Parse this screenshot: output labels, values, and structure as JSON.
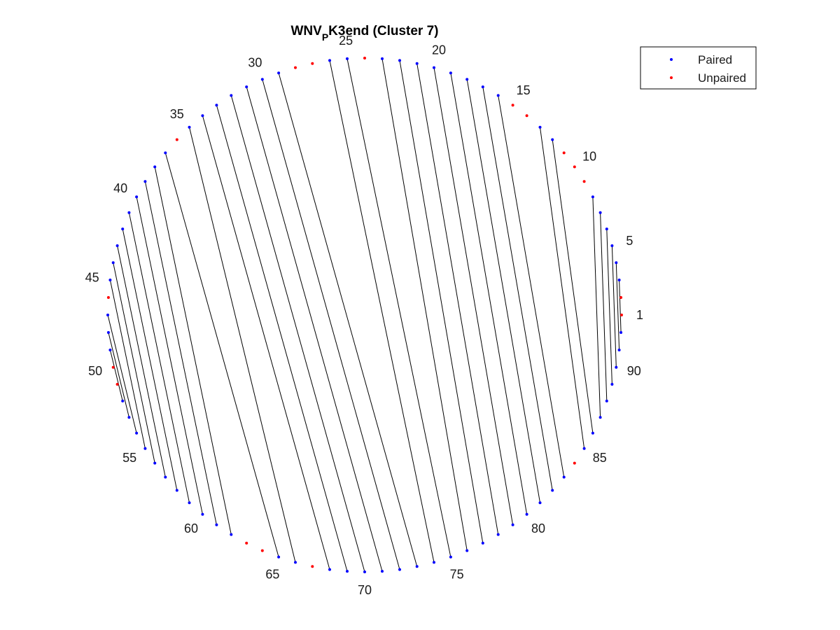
{
  "chart_data": {
    "type": "circular-arc-diagram",
    "title": {
      "main": "WNV",
      "subscript": "P",
      "rest": "K3end (Cluster 7)"
    },
    "sequence_length": 92,
    "position_labels": [
      "1",
      "5",
      "10",
      "15",
      "20",
      "25",
      "30",
      "35",
      "40",
      "45",
      "50",
      "55",
      "60",
      "65",
      "70",
      "75",
      "80",
      "85",
      "90"
    ],
    "label_positions": [
      1,
      5,
      10,
      15,
      20,
      25,
      30,
      35,
      40,
      45,
      50,
      55,
      60,
      65,
      70,
      75,
      80,
      85,
      90
    ],
    "pairs": [
      [
        3,
        92
      ],
      [
        4,
        91
      ],
      [
        5,
        90
      ],
      [
        6,
        89
      ],
      [
        7,
        88
      ],
      [
        8,
        87
      ],
      [
        12,
        86
      ],
      [
        13,
        85
      ],
      [
        16,
        83
      ],
      [
        17,
        82
      ],
      [
        18,
        81
      ],
      [
        19,
        80
      ],
      [
        20,
        79
      ],
      [
        21,
        78
      ],
      [
        22,
        77
      ],
      [
        23,
        76
      ],
      [
        25,
        75
      ],
      [
        26,
        74
      ],
      [
        29,
        73
      ],
      [
        30,
        72
      ],
      [
        31,
        71
      ],
      [
        32,
        70
      ],
      [
        33,
        69
      ],
      [
        34,
        68
      ],
      [
        35,
        66
      ],
      [
        37,
        65
      ],
      [
        38,
        62
      ],
      [
        39,
        61
      ],
      [
        40,
        60
      ],
      [
        41,
        59
      ],
      [
        42,
        58
      ],
      [
        43,
        57
      ],
      [
        44,
        56
      ],
      [
        45,
        55
      ],
      [
        47,
        54
      ],
      [
        48,
        53
      ],
      [
        49,
        52
      ]
    ],
    "legend": {
      "placement": "top-right",
      "entries": [
        {
          "label": "Paired",
          "color": "#0000ff"
        },
        {
          "label": "Unpaired",
          "color": "#ff0000"
        }
      ]
    },
    "colors": {
      "paired": "#0000ff",
      "unpaired": "#ff0000",
      "line": "#000000"
    }
  }
}
